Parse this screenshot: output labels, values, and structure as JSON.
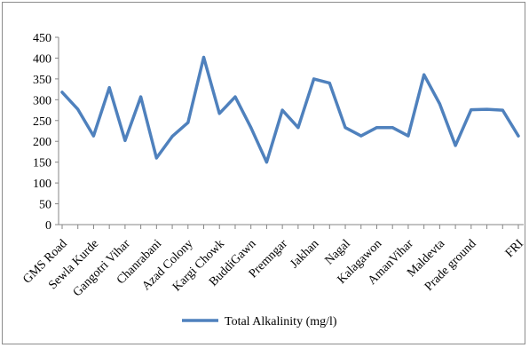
{
  "chart_data": {
    "type": "line",
    "title": "",
    "xlabel": "",
    "ylabel": "",
    "ylim": [
      0,
      450
    ],
    "yticks": [
      0,
      50,
      100,
      150,
      200,
      250,
      300,
      350,
      400,
      450
    ],
    "grid": false,
    "legend_position": "bottom",
    "x": [
      "GMS Road",
      "",
      "Sewla Kurde",
      "",
      "Gangotri Vihar",
      "",
      "Chanrabani",
      "",
      "Azad Colony",
      "",
      "Kargi Chowk",
      "",
      "BuddiGawn",
      "",
      "Premngar",
      "",
      "Jakhan",
      "",
      "Nagal",
      "",
      "Kalagawon",
      "",
      "AmanVihar",
      "",
      "Maldevta",
      "",
      "Prade ground",
      "",
      "",
      "FRI"
    ],
    "tick_labels": [
      "GMS Road",
      "Sewla Kurde",
      "Gangotri Vihar",
      "Chanrabani",
      "Azad Colony",
      "Kargi Chowk",
      "BuddiGawn",
      "Premngar",
      "Jakhan",
      "Nagal",
      "Kalagawon",
      "AmanVihar",
      "Maldevta",
      "Prade ground",
      "FRI"
    ],
    "series": [
      {
        "name": "Total Alkalinity (mg/l)",
        "color": "#4f81bd",
        "values": [
          318,
          277,
          213,
          329,
          202,
          307,
          160,
          212,
          245,
          402,
          267,
          307,
          233,
          150,
          275,
          233,
          350,
          340,
          233,
          213,
          233,
          233,
          213,
          360,
          290,
          190,
          276,
          277,
          275,
          213
        ]
      }
    ]
  }
}
